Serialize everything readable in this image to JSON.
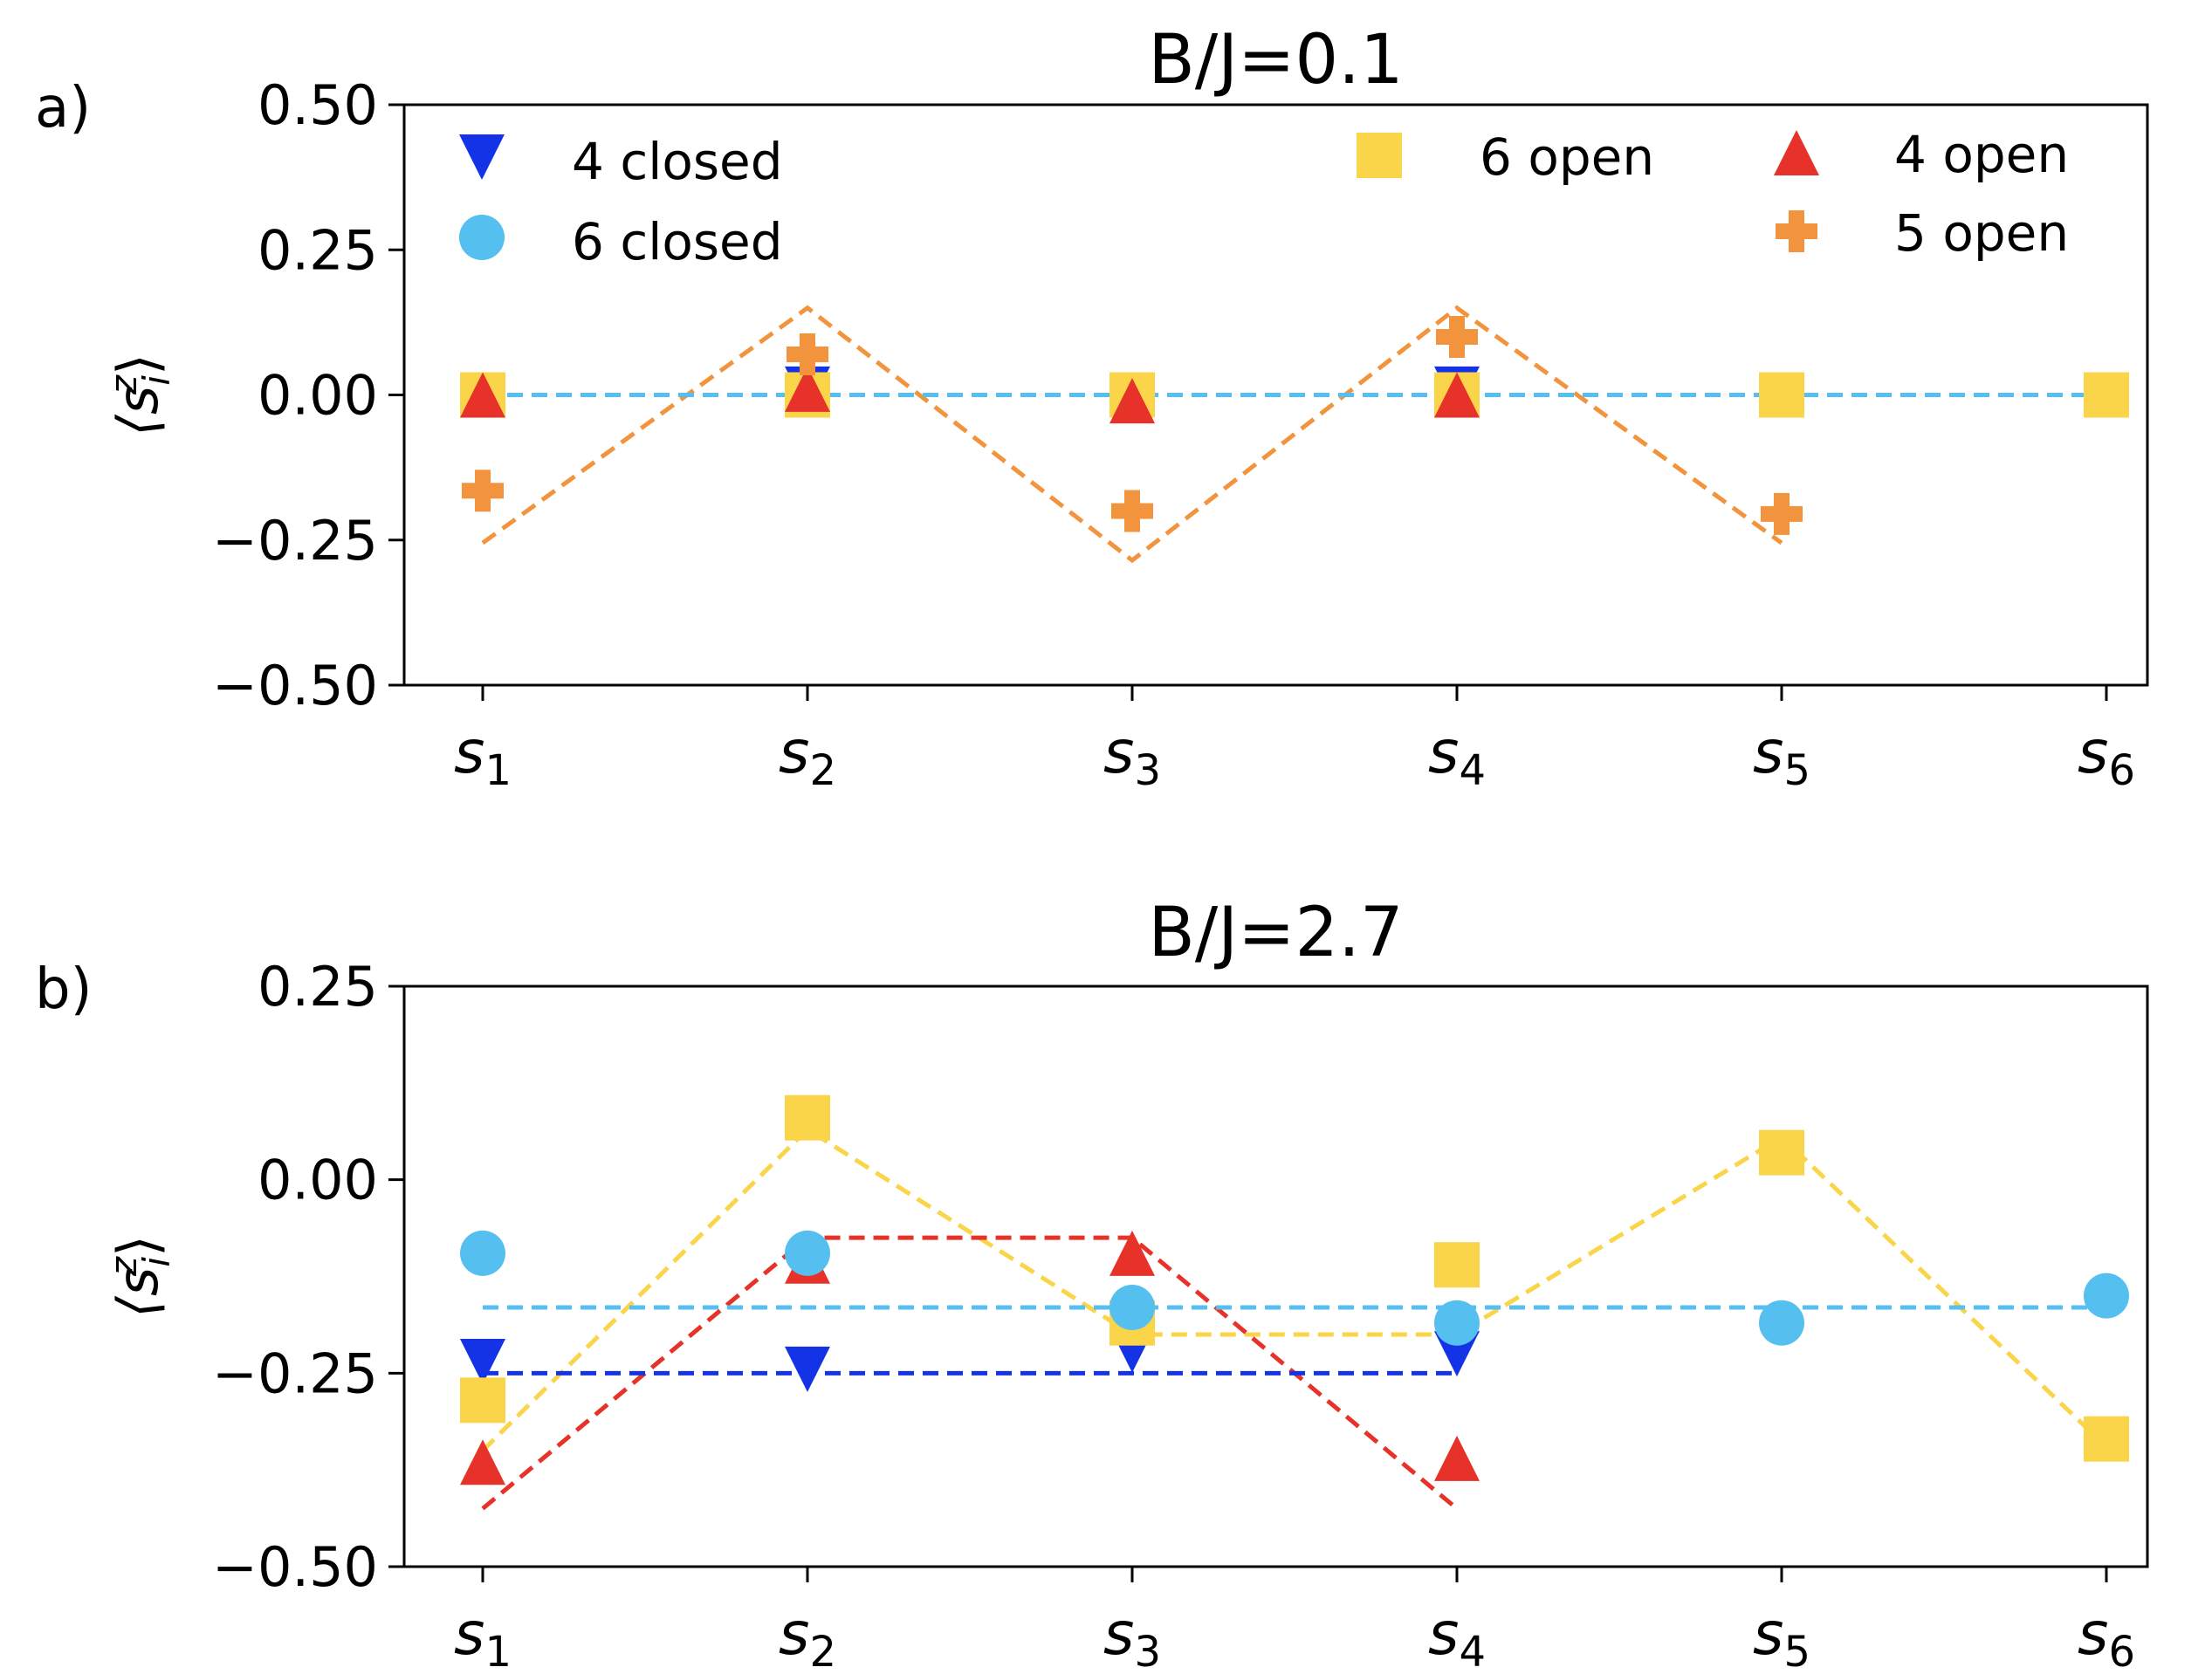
{
  "figure": {
    "panel_labels": [
      "a)",
      "b)"
    ],
    "ylabel_text": "⟨s",
    "ylabel_sup": "z",
    "ylabel_sub": "i",
    "ylabel_close": "⟩"
  },
  "chart_data": [
    {
      "type": "scatter",
      "title": "B/J=0.1",
      "panel_label": "a)",
      "ylabel": "⟨s_i^z⟩",
      "categories": [
        "s1",
        "s2",
        "s3",
        "s4",
        "s5",
        "s6"
      ],
      "x_tick_labels": [
        {
          "base": "s",
          "sub": "1"
        },
        {
          "base": "s",
          "sub": "2"
        },
        {
          "base": "s",
          "sub": "3"
        },
        {
          "base": "s",
          "sub": "4"
        },
        {
          "base": "s",
          "sub": "5"
        },
        {
          "base": "s",
          "sub": "6"
        }
      ],
      "ylim": [
        -0.5,
        0.5
      ],
      "yticks": [
        0.5,
        0.25,
        0.0,
        -0.25,
        -0.5
      ],
      "ytick_labels": [
        "0.50",
        "0.25",
        "0.00",
        "−0.25",
        "−0.50"
      ],
      "series": [
        {
          "name": "4 closed",
          "marker": "triangle-down",
          "color": "#1433e6",
          "values": [
            0.0,
            0.01,
            -0.01,
            0.01
          ]
        },
        {
          "name": "6 closed",
          "marker": "circle",
          "color": "#55bff0",
          "values": [
            0.0,
            0.0,
            0.0,
            0.0,
            0.0,
            0.0
          ]
        },
        {
          "name": "6 open",
          "marker": "square",
          "color": "#fad54a",
          "values": [
            0.0,
            0.0,
            0.0,
            0.0,
            0.0,
            0.0
          ]
        },
        {
          "name": "4 open",
          "marker": "triangle-up",
          "color": "#e63228",
          "values": [
            0.0,
            0.01,
            -0.01,
            0.0
          ]
        },
        {
          "name": "5 open",
          "marker": "plus",
          "color": "#f2933d",
          "values": [
            -0.165,
            0.07,
            -0.2,
            0.1,
            -0.205
          ]
        }
      ],
      "fit_lines": [
        {
          "name": "5 open fit",
          "color": "#f2933d",
          "values": [
            -0.255,
            0.15,
            -0.285,
            0.15,
            -0.255
          ]
        },
        {
          "name": "4 closed fit",
          "color": "#1433e6",
          "values": [
            0.0,
            0.0,
            0.0,
            0.0
          ]
        },
        {
          "name": "6 closed fit",
          "color": "#55bff0",
          "values": [
            0.0,
            0.0,
            0.0,
            0.0,
            0.0,
            0.0
          ]
        }
      ],
      "legend": [
        {
          "label": "4 closed",
          "marker": "triangle-down",
          "color": "#1433e6"
        },
        {
          "label": "6 closed",
          "marker": "circle",
          "color": "#55bff0"
        },
        {
          "label": "6 open",
          "marker": "square",
          "color": "#fad54a"
        },
        {
          "label": "4 open",
          "marker": "triangle-up",
          "color": "#e63228"
        },
        {
          "label": "5 open",
          "marker": "plus",
          "color": "#f2933d"
        }
      ]
    },
    {
      "type": "scatter",
      "title": "B/J=2.7",
      "panel_label": "b)",
      "ylabel": "⟨s_i^z⟩",
      "categories": [
        "s1",
        "s2",
        "s3",
        "s4",
        "s5",
        "s6"
      ],
      "x_tick_labels": [
        {
          "base": "s",
          "sub": "1"
        },
        {
          "base": "s",
          "sub": "2"
        },
        {
          "base": "s",
          "sub": "3"
        },
        {
          "base": "s",
          "sub": "4"
        },
        {
          "base": "s",
          "sub": "5"
        },
        {
          "base": "s",
          "sub": "6"
        }
      ],
      "ylim": [
        -0.5,
        0.25
      ],
      "yticks": [
        0.25,
        0.0,
        -0.25,
        -0.5
      ],
      "ytick_labels": [
        "0.25",
        "0.00",
        "−0.25",
        "−0.50"
      ],
      "series": [
        {
          "name": "4 closed",
          "marker": "triangle-down",
          "color": "#1433e6",
          "values": [
            -0.235,
            -0.245,
            -0.22,
            -0.225
          ]
        },
        {
          "name": "4 open",
          "marker": "triangle-up",
          "color": "#e63228",
          "values": [
            -0.365,
            -0.105,
            -0.095,
            -0.36
          ]
        },
        {
          "name": "6 open",
          "marker": "square",
          "color": "#fad54a",
          "values": [
            -0.285,
            0.08,
            -0.185,
            -0.11,
            0.035,
            -0.335
          ]
        },
        {
          "name": "6 closed",
          "marker": "circle",
          "color": "#55bff0",
          "values": [
            -0.095,
            -0.095,
            -0.165,
            -0.185,
            -0.185,
            -0.15
          ]
        }
      ],
      "fit_lines": [
        {
          "name": "6 open fit",
          "color": "#fad54a",
          "values": [
            -0.35,
            0.065,
            -0.2,
            -0.2,
            0.055,
            -0.345
          ]
        },
        {
          "name": "4 open fit",
          "color": "#e63228",
          "values": [
            -0.425,
            -0.075,
            -0.075,
            -0.425
          ]
        },
        {
          "name": "4 closed fit",
          "color": "#1433e6",
          "values": [
            -0.25,
            -0.25,
            -0.25,
            -0.25
          ]
        },
        {
          "name": "6 closed fit",
          "color": "#55bff0",
          "values": [
            -0.165,
            -0.165,
            -0.165,
            -0.165,
            -0.165,
            -0.165
          ]
        }
      ],
      "legend": []
    }
  ]
}
